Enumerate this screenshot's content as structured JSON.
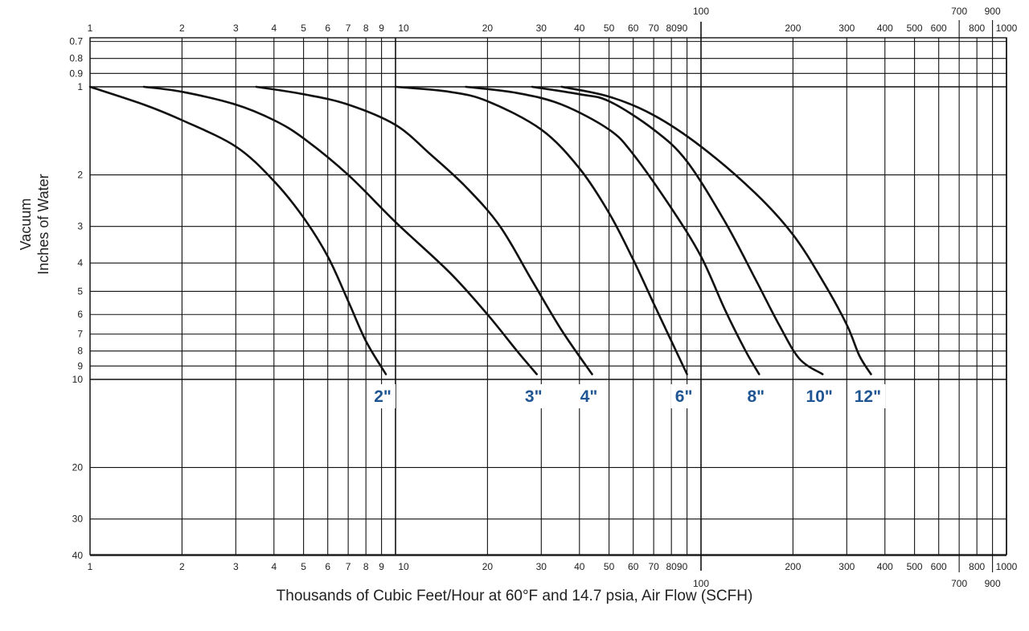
{
  "chart_data": {
    "type": "line",
    "title": "",
    "xlabel": "Thousands of Cubic Feet/Hour at 60°F and 14.7 psia, Air Flow (SCFH)",
    "ylabel_lines": [
      "Vacuum",
      "Inches of Water"
    ],
    "x_scale": "log",
    "y_scale": "log",
    "y_inverted": true,
    "xlim": [
      1,
      1000
    ],
    "ylim": [
      0.7,
      40
    ],
    "grid": true,
    "legend": "none",
    "x_ticks": [
      {
        "v": 1,
        "label": "1",
        "group": "lo"
      },
      {
        "v": 2,
        "label": "2",
        "group": "lo"
      },
      {
        "v": 3,
        "label": "3",
        "group": "lo"
      },
      {
        "v": 4,
        "label": "4",
        "group": "lo"
      },
      {
        "v": 5,
        "label": "5",
        "group": "lo"
      },
      {
        "v": 6,
        "label": "6",
        "group": "lo"
      },
      {
        "v": 7,
        "label": "7",
        "group": "lo"
      },
      {
        "v": 8,
        "label": "8",
        "group": "lo"
      },
      {
        "v": 9,
        "label": "9",
        "group": "lo"
      },
      {
        "v": 10,
        "label": "10",
        "group": "lo"
      },
      {
        "v": 20,
        "label": "20",
        "group": "lo"
      },
      {
        "v": 30,
        "label": "30",
        "group": "lo"
      },
      {
        "v": 40,
        "label": "40",
        "group": "lo"
      },
      {
        "v": 50,
        "label": "50",
        "group": "lo"
      },
      {
        "v": 60,
        "label": "60",
        "group": "lo"
      },
      {
        "v": 70,
        "label": "70",
        "group": "lo"
      },
      {
        "v": 80,
        "label": "80",
        "group": "lo"
      },
      {
        "v": 90,
        "label": "90",
        "group": "lo"
      },
      {
        "v": 100,
        "label": "100",
        "group": "mid"
      },
      {
        "v": 200,
        "label": "200",
        "group": "hi"
      },
      {
        "v": 300,
        "label": "300",
        "group": "hi"
      },
      {
        "v": 400,
        "label": "400",
        "group": "hi"
      },
      {
        "v": 500,
        "label": "500",
        "group": "hi"
      },
      {
        "v": 600,
        "label": "600",
        "group": "hi"
      },
      {
        "v": 700,
        "label": "700",
        "group": "alt"
      },
      {
        "v": 800,
        "label": "800",
        "group": "hi"
      },
      {
        "v": 900,
        "label": "900",
        "group": "alt"
      },
      {
        "v": 1000,
        "label": "1000",
        "group": "hi"
      }
    ],
    "y_ticks": [
      {
        "v": 0.7,
        "label": "0.7"
      },
      {
        "v": 0.8,
        "label": "0.8"
      },
      {
        "v": 0.9,
        "label": "0.9"
      },
      {
        "v": 1,
        "label": "1"
      },
      {
        "v": 2,
        "label": "2"
      },
      {
        "v": 3,
        "label": "3"
      },
      {
        "v": 4,
        "label": "4"
      },
      {
        "v": 5,
        "label": "5"
      },
      {
        "v": 6,
        "label": "6"
      },
      {
        "v": 7,
        "label": "7"
      },
      {
        "v": 8,
        "label": "8"
      },
      {
        "v": 9,
        "label": "9"
      },
      {
        "v": 10,
        "label": "10"
      },
      {
        "v": 20,
        "label": "20"
      },
      {
        "v": 30,
        "label": "30"
      },
      {
        "v": 40,
        "label": "40"
      }
    ],
    "series": [
      {
        "name": "2\"",
        "label": "2\"",
        "points": [
          [
            1,
            1
          ],
          [
            1.5,
            1.15
          ],
          [
            2,
            1.3
          ],
          [
            3,
            1.6
          ],
          [
            4,
            2.1
          ],
          [
            5,
            2.8
          ],
          [
            6,
            3.8
          ],
          [
            7,
            5.4
          ],
          [
            8,
            7.4
          ],
          [
            9.3,
            9.6
          ]
        ]
      },
      {
        "name": "3\"",
        "label": "3\"",
        "points": [
          [
            1.5,
            1
          ],
          [
            2,
            1.04
          ],
          [
            3,
            1.15
          ],
          [
            4,
            1.3
          ],
          [
            5,
            1.5
          ],
          [
            7,
            2
          ],
          [
            10,
            2.9
          ],
          [
            15,
            4.3
          ],
          [
            20,
            6
          ],
          [
            25,
            8
          ],
          [
            29,
            9.6
          ]
        ]
      },
      {
        "name": "4\"",
        "label": "4\"",
        "points": [
          [
            3.5,
            1
          ],
          [
            5,
            1.06
          ],
          [
            7,
            1.15
          ],
          [
            10,
            1.35
          ],
          [
            13,
            1.7
          ],
          [
            17,
            2.2
          ],
          [
            22,
            3
          ],
          [
            28,
            4.6
          ],
          [
            35,
            6.8
          ],
          [
            44,
            9.6
          ]
        ]
      },
      {
        "name": "6\"",
        "label": "6\"",
        "points": [
          [
            10,
            1
          ],
          [
            15,
            1.04
          ],
          [
            20,
            1.12
          ],
          [
            30,
            1.4
          ],
          [
            40,
            1.9
          ],
          [
            50,
            2.7
          ],
          [
            60,
            3.9
          ],
          [
            70,
            5.5
          ],
          [
            80,
            7.4
          ],
          [
            90,
            9.6
          ]
        ]
      },
      {
        "name": "8\"",
        "label": "8\"",
        "points": [
          [
            17,
            1
          ],
          [
            25,
            1.05
          ],
          [
            35,
            1.15
          ],
          [
            50,
            1.4
          ],
          [
            60,
            1.7
          ],
          [
            80,
            2.6
          ],
          [
            100,
            3.8
          ],
          [
            120,
            5.8
          ],
          [
            140,
            8
          ],
          [
            155,
            9.6
          ]
        ]
      },
      {
        "name": "10\"",
        "label": "10\"",
        "points": [
          [
            28,
            1
          ],
          [
            40,
            1.06
          ],
          [
            50,
            1.12
          ],
          [
            70,
            1.4
          ],
          [
            90,
            1.8
          ],
          [
            120,
            2.9
          ],
          [
            150,
            4.5
          ],
          [
            180,
            6.5
          ],
          [
            210,
            8.5
          ],
          [
            250,
            9.6
          ]
        ]
      },
      {
        "name": "12\"",
        "label": "12\"",
        "points": [
          [
            35,
            1
          ],
          [
            50,
            1.08
          ],
          [
            70,
            1.25
          ],
          [
            100,
            1.6
          ],
          [
            150,
            2.3
          ],
          [
            200,
            3.2
          ],
          [
            250,
            4.6
          ],
          [
            300,
            6.5
          ],
          [
            330,
            8.3
          ],
          [
            360,
            9.6
          ]
        ]
      }
    ]
  }
}
